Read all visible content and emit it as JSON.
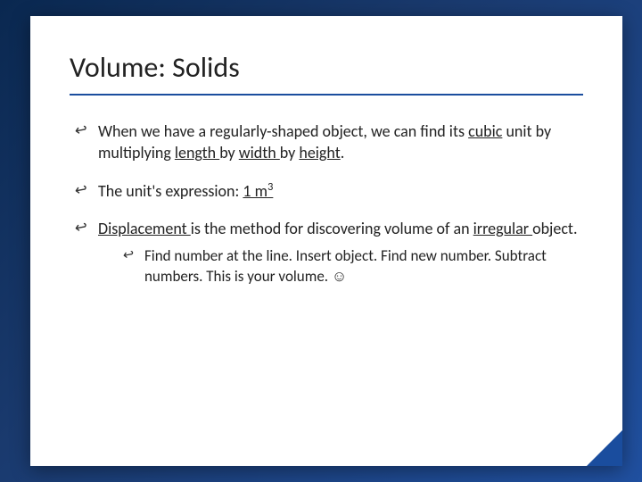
{
  "slide": {
    "title": "Volume: Solids",
    "bullets": [
      {
        "pre": "When we have a regularly-shaped object, we can find its ",
        "u1": "cubic",
        "mid1": " unit by multiplying ",
        "u2": "length ",
        "mid2": "by ",
        "u3": "width ",
        "mid3": "by ",
        "u4": "height",
        "post": "."
      },
      {
        "pre": "The unit's expression: ",
        "u1": "1 m",
        "sup": "3"
      },
      {
        "u1": "Displacement ",
        "mid1": "is the method for discovering volume of an ",
        "u2": "irregular ",
        "post": "object.",
        "sub": "Find number at the line. Insert object. Find new number. Subtract numbers. This is your volume. ☺"
      }
    ]
  },
  "colors": {
    "accent": "#1a4d9e",
    "text": "#222222",
    "card_bg": "#ffffff"
  }
}
